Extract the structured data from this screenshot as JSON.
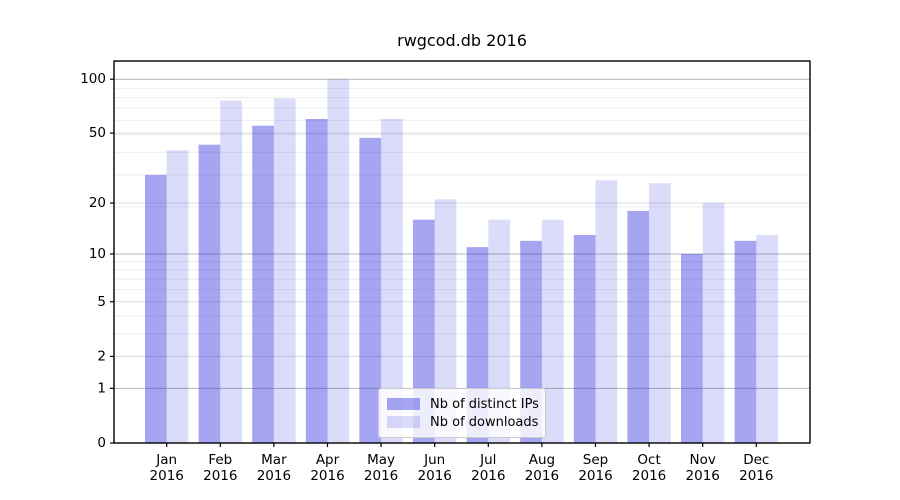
{
  "chart_data": {
    "type": "bar",
    "title": "rwgcod.db 2016",
    "categories": [
      "Jan",
      "Feb",
      "Mar",
      "Apr",
      "May",
      "Jun",
      "Jul",
      "Aug",
      "Sep",
      "Oct",
      "Nov",
      "Dec"
    ],
    "x_year_label": "2016",
    "series": [
      {
        "name": "Nb of distinct IPs",
        "color": "#3737e1",
        "alpha": 0.45,
        "values": [
          29,
          43,
          55,
          60,
          47,
          16,
          11,
          12,
          13,
          18,
          10,
          12
        ]
      },
      {
        "name": "Nb of downloads",
        "color": "#3737e1",
        "alpha": 0.18,
        "values": [
          40,
          76,
          78,
          100,
          60,
          21,
          16,
          16,
          27,
          26,
          20,
          13
        ]
      }
    ],
    "yscale": "log10(1+y)",
    "ylabel": "",
    "xlabel": "",
    "y_ticks": [
      0,
      1,
      2,
      5,
      10,
      20,
      50,
      100
    ],
    "ylim": [
      0,
      126
    ],
    "grid": "both",
    "legend": {
      "position": "lower center",
      "entries": [
        "Nb of distinct IPs",
        "Nb of downloads"
      ]
    },
    "colors": {
      "background": "#ffffff",
      "grid_decade": "#b5b5b5",
      "grid_labeled": "#dcdcdc",
      "grid_minor": "#ececec",
      "spine": "#000000",
      "text": "#000000",
      "legend_border": "#cccccc"
    }
  }
}
